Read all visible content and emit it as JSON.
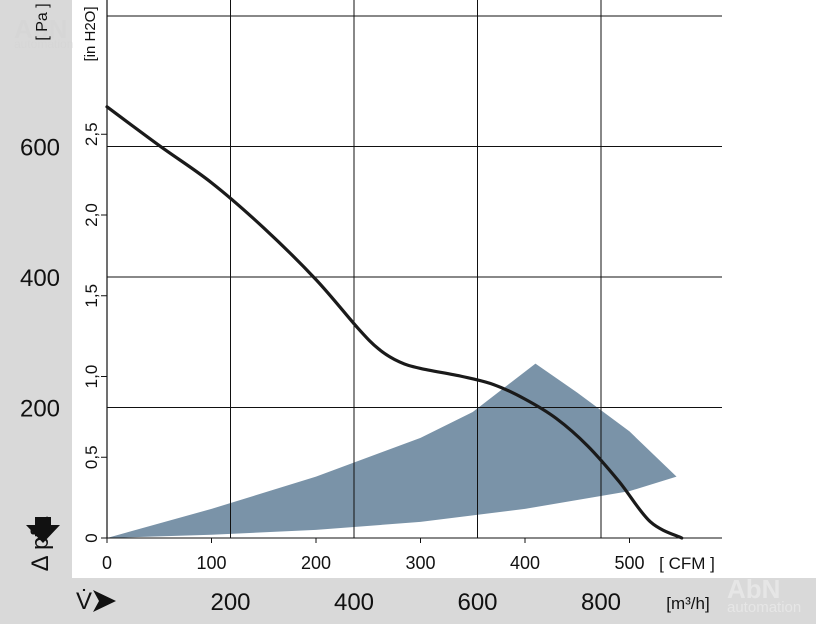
{
  "chart_data": {
    "type": "line",
    "y_axis_pa": {
      "unit_label": "[ Pa ]",
      "ticks": [
        "200",
        "400",
        "600"
      ],
      "range": [
        0,
        800
      ]
    },
    "y_axis_inh2o": {
      "unit_label": "[in H2O]",
      "ticks": [
        "0",
        "0,5",
        "1,0",
        "1,5",
        "2,0",
        "2,5"
      ],
      "range": [
        0,
        3.21
      ]
    },
    "y_axis_title": "Δ pfa",
    "x_axis_cfm": {
      "unit_label": "[ CFM ]",
      "ticks": [
        "0",
        "100",
        "200",
        "300",
        "400",
        "500"
      ],
      "range": [
        0,
        588
      ]
    },
    "x_axis_m3h": {
      "symbol": "V̇",
      "unit_label": "[m³/h]",
      "ticks": [
        "200",
        "400",
        "600",
        "800"
      ],
      "range": [
        0,
        1000
      ]
    },
    "series": [
      {
        "values_cfm_inh2o": [
          [
            0,
            2.67
          ],
          [
            50,
            2.43
          ],
          [
            100,
            2.2
          ],
          [
            150,
            1.92
          ],
          [
            200,
            1.6
          ],
          [
            240,
            1.3
          ],
          [
            260,
            1.17
          ],
          [
            280,
            1.09
          ],
          [
            300,
            1.05
          ],
          [
            340,
            1.0
          ],
          [
            370,
            0.95
          ],
          [
            400,
            0.86
          ],
          [
            430,
            0.74
          ],
          [
            460,
            0.57
          ],
          [
            490,
            0.35
          ],
          [
            520,
            0.1
          ],
          [
            550,
            0
          ]
        ]
      }
    ],
    "operating_region_cfm_inh2o": {
      "upper": [
        [
          0,
          0
        ],
        [
          100,
          0.18
        ],
        [
          200,
          0.38
        ],
        [
          300,
          0.62
        ],
        [
          350,
          0.78
        ],
        [
          410,
          1.08
        ]
      ],
      "outer_edge": [
        [
          410,
          1.08
        ],
        [
          450,
          0.9
        ],
        [
          500,
          0.66
        ],
        [
          545,
          0.38
        ]
      ],
      "lower": [
        [
          545,
          0.38
        ],
        [
          500,
          0.29
        ],
        [
          400,
          0.18
        ],
        [
          300,
          0.1
        ],
        [
          200,
          0.05
        ],
        [
          100,
          0.02
        ],
        [
          0,
          0
        ]
      ]
    },
    "grid": true,
    "colors": {
      "curve": "#1a1a1a",
      "region": "#7a93a8",
      "frame": "#d9d9d9",
      "watermark": "#d3d3d3"
    },
    "watermark": [
      "AbN",
      "automation"
    ]
  }
}
